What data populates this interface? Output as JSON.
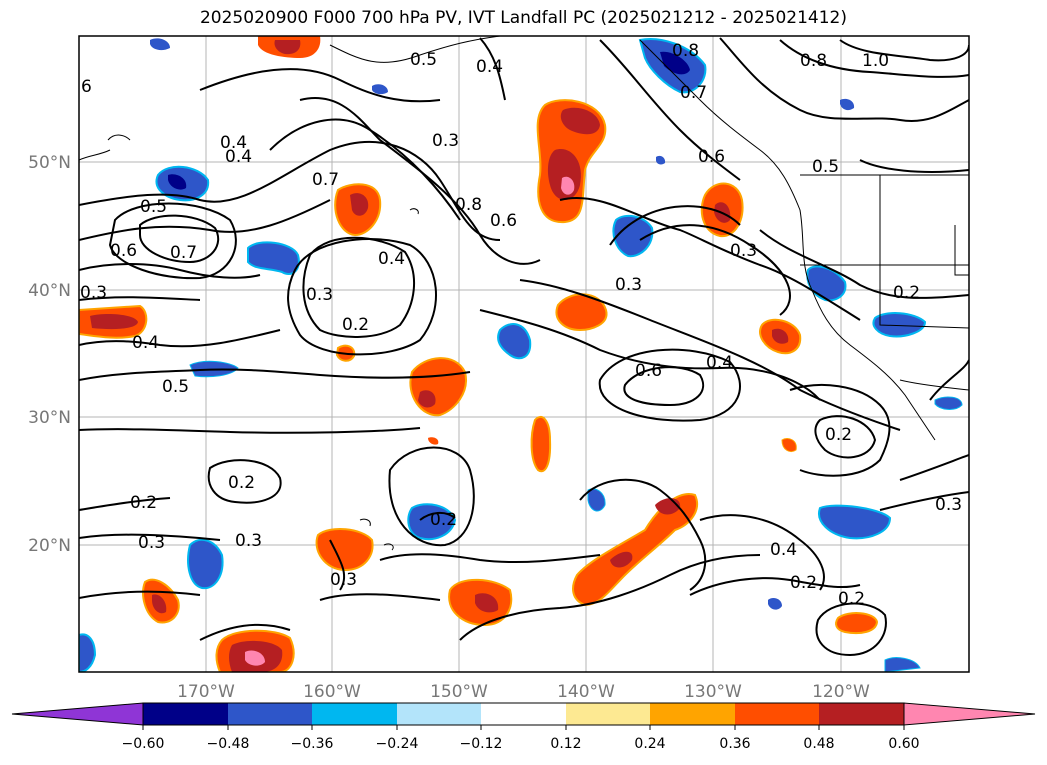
{
  "title": "2025020900 F000 700 hPa PV, IVT Landfall PC (2025021212 - 2025021412)",
  "map": {
    "lat_ticks": [
      "50°N",
      "40°N",
      "30°N",
      "20°N"
    ],
    "lon_ticks": [
      "170°W",
      "160°W",
      "150°W",
      "140°W",
      "130°W",
      "120°W"
    ],
    "contour_labels": [
      "6",
      "0.4",
      "0.5",
      "0.3",
      "0.4",
      "0.8",
      "0.8",
      "1.0",
      "0.7",
      "0.6",
      "0.5",
      "0.4",
      "0.5",
      "0.7",
      "0.8",
      "0.6",
      "0.6",
      "0.7",
      "0.4",
      "0.3",
      "0.2",
      "0.3",
      "0.4",
      "0.5",
      "0.6",
      "0.4",
      "0.3",
      "0.2",
      "0.2",
      "0.2",
      "0.3",
      "0.2",
      "0.3",
      "0.3",
      "0.4",
      "0.2",
      "0.2",
      "0.3",
      "0.2",
      "0.3"
    ],
    "colors": {
      "neg_extreme": "#8f35d6",
      "neg_strong": "#000088",
      "neg_mid": "#2e56c9",
      "neg_light": "#00b7f0",
      "neg_pale": "#b3e4fa",
      "neutral": "#ffffff",
      "pos_pale": "#fde992",
      "pos_light": "#ffa400",
      "pos_mid": "#ff4e00",
      "pos_strong": "#b51f22",
      "pos_extreme": "#ff86b0"
    }
  },
  "colorbar": {
    "ticks": [
      "−0.60",
      "−0.48",
      "−0.36",
      "−0.24",
      "−0.12",
      "0.12",
      "0.24",
      "0.36",
      "0.48",
      "0.60"
    ]
  }
}
